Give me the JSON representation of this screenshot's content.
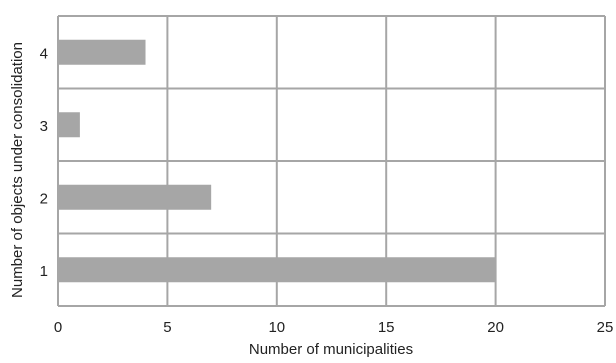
{
  "chart_data": {
    "type": "bar",
    "orientation": "horizontal",
    "categories": [
      "1",
      "2",
      "3",
      "4"
    ],
    "values": [
      20,
      7,
      1,
      4
    ],
    "xlabel": "Number of municipalities",
    "ylabel": "Number of objects under consolidation",
    "xlim": [
      0,
      25
    ],
    "xticks": [
      "0",
      "5",
      "10",
      "15",
      "20",
      "25"
    ],
    "grid": true,
    "legend": "none",
    "bar_color": "#a6a6a6",
    "grid_color": "#a6a6a6"
  }
}
